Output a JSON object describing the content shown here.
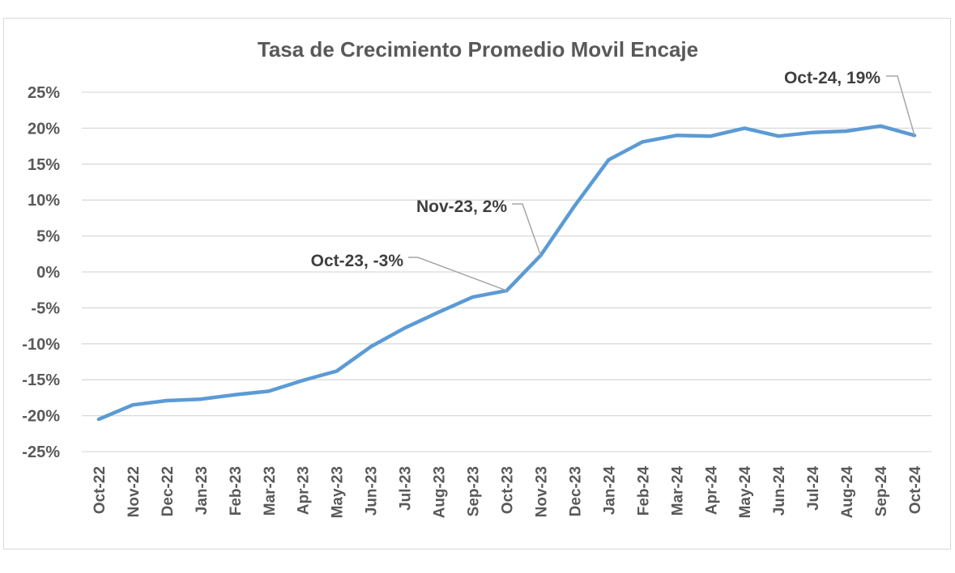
{
  "chart_data": {
    "type": "line",
    "title": "Tasa de Crecimiento Promedio Movil Encaje",
    "xlabel": "",
    "ylabel": "",
    "categories": [
      "Oct-22",
      "Nov-22",
      "Dec-22",
      "Jan-23",
      "Feb-23",
      "Mar-23",
      "Apr-23",
      "May-23",
      "Jun-23",
      "Jul-23",
      "Aug-23",
      "Sep-23",
      "Oct-23",
      "Nov-23",
      "Dec-23",
      "Jan-24",
      "Feb-24",
      "Mar-24",
      "Apr-24",
      "May-24",
      "Jun-24",
      "Jul-24",
      "Aug-24",
      "Sep-24",
      "Oct-24"
    ],
    "series": [
      {
        "values": [
          -20.5,
          -18.5,
          -17.9,
          -17.7,
          -17.1,
          -16.6,
          -15.1,
          -13.8,
          -10.4,
          -7.8,
          -5.6,
          -3.5,
          -2.6,
          2.3,
          9.2,
          15.6,
          18.1,
          19.0,
          18.9,
          20.0,
          18.9,
          19.4,
          19.6,
          20.3,
          19.0
        ],
        "color": "#5b9bd5"
      }
    ],
    "ylim": [
      -25,
      25
    ],
    "yticks": [
      -25,
      -20,
      -15,
      -10,
      -5,
      0,
      5,
      10,
      15,
      20,
      25
    ],
    "ytick_labels": [
      "-25%",
      "-20%",
      "-15%",
      "-10%",
      "-5%",
      "0%",
      "5%",
      "10%",
      "15%",
      "20%",
      "25%"
    ],
    "grid": true,
    "legend": "none",
    "annotations": [
      {
        "index": 12,
        "text": "Oct-23, -3%"
      },
      {
        "index": 13,
        "text": "Nov-23, 2%"
      },
      {
        "index": 24,
        "text": "Oct-24, 19%"
      }
    ],
    "colors": {
      "line": "#5b9bd5",
      "grid": "#d9d9d9",
      "text": "#595959",
      "label": "#404040",
      "leader": "#a6a6a6"
    }
  }
}
